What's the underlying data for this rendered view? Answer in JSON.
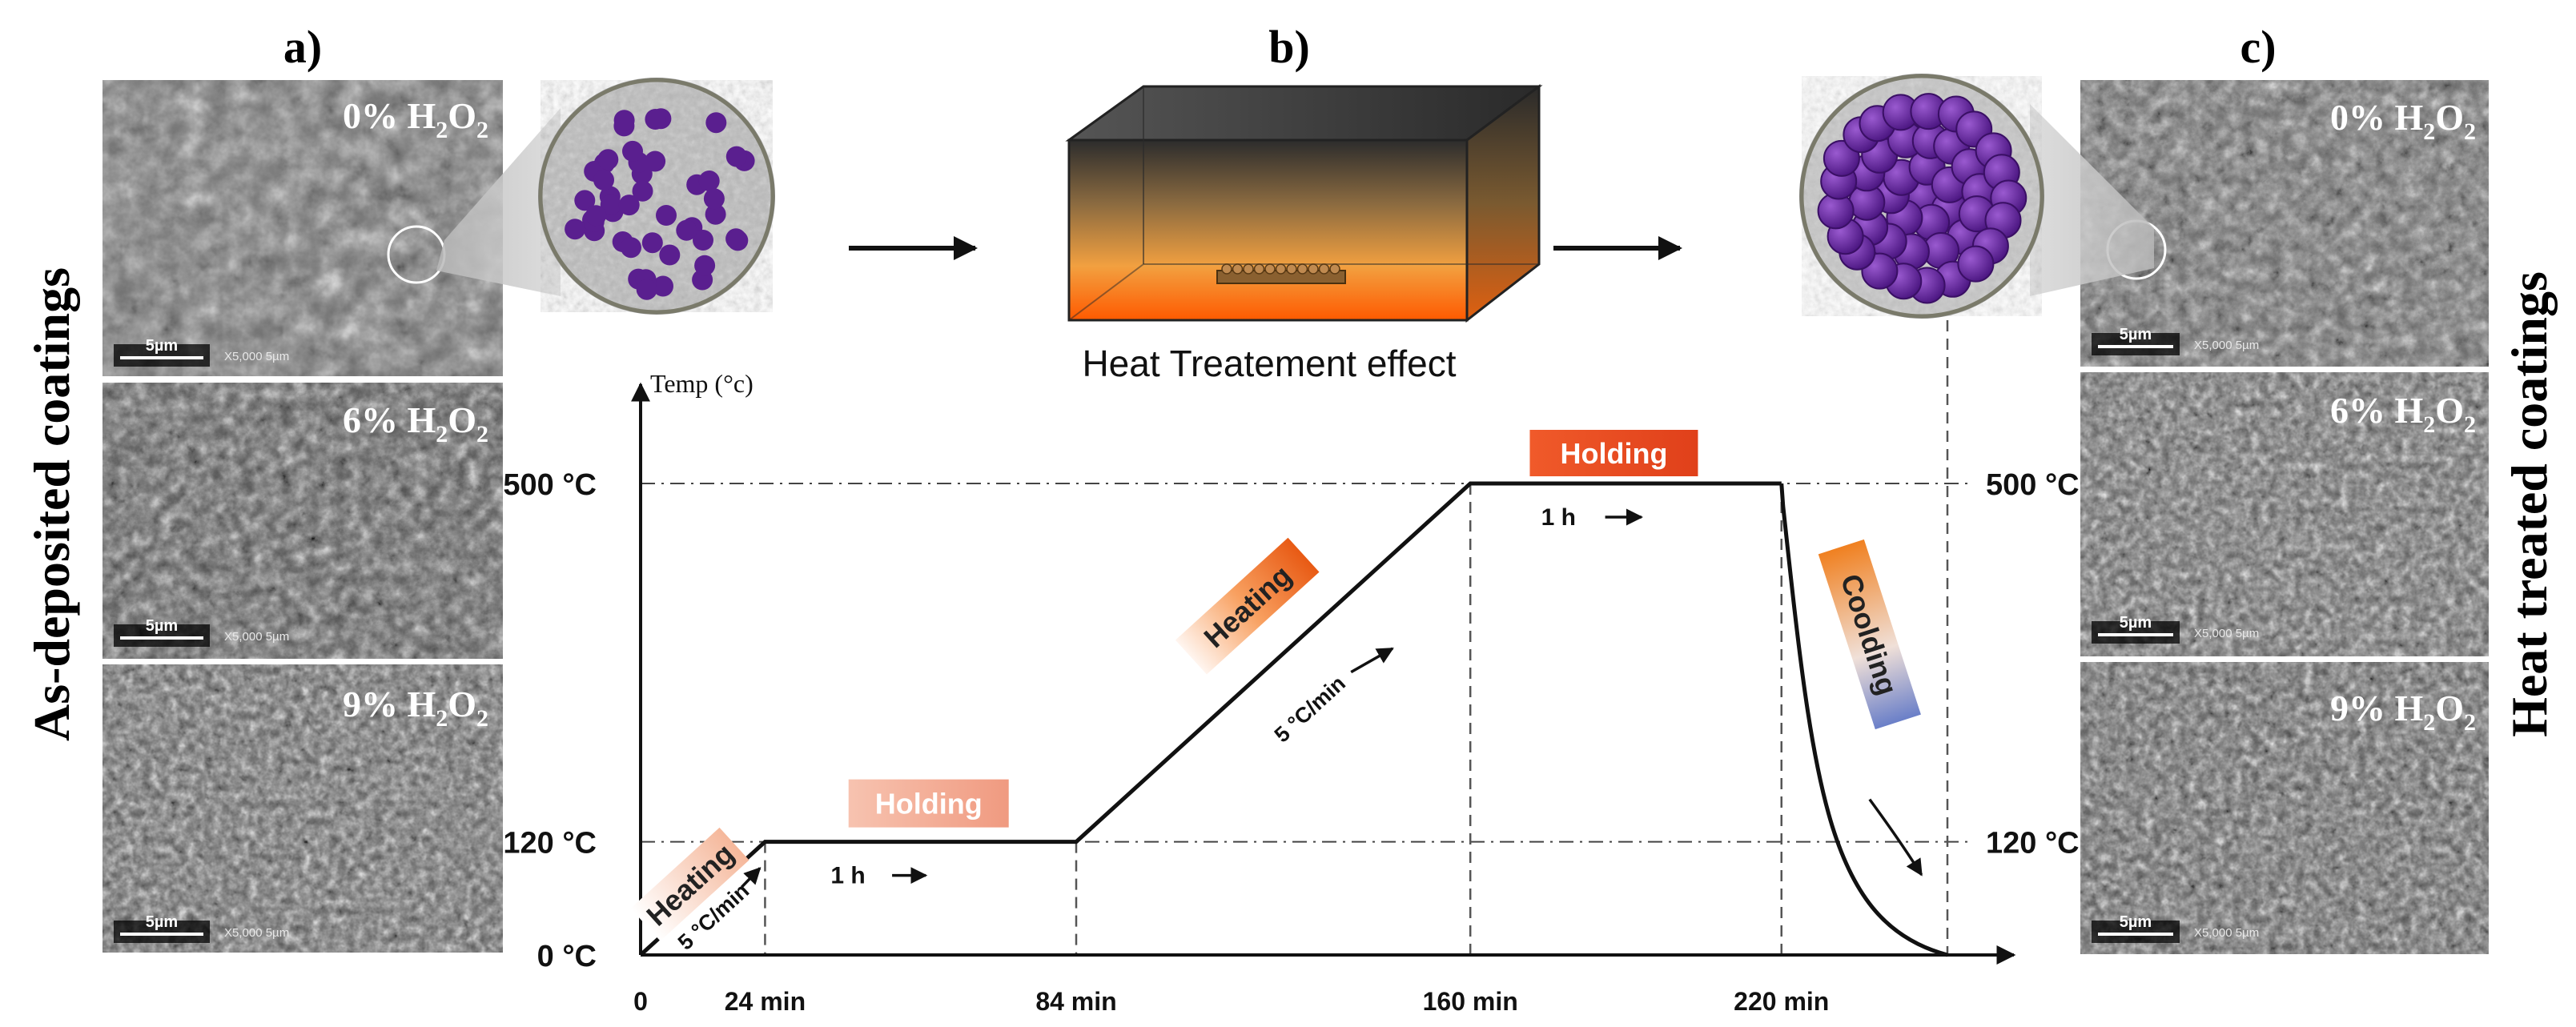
{
  "panels": {
    "a": {
      "letter": "a)",
      "side_label": "As-deposited coatings"
    },
    "b": {
      "letter": "b)",
      "caption": "Heat Treatement effect"
    },
    "c": {
      "letter": "c)",
      "side_label": "Heat treated coatings"
    }
  },
  "sem_images": {
    "as_deposited": [
      {
        "pct": "0% H",
        "sub": "2",
        "mid": "O",
        "sub2": "2",
        "scale": "5µm",
        "mag": "X5,000   5µm"
      },
      {
        "pct": "6% H",
        "sub": "2",
        "mid": "O",
        "sub2": "2",
        "scale": "5µm",
        "mag": "X5,000   5µm"
      },
      {
        "pct": "9% H",
        "sub": "2",
        "mid": "O",
        "sub2": "2",
        "scale": "5µm",
        "mag": "X5,000   5µm"
      }
    ],
    "heat_treated": [
      {
        "pct": "0% H",
        "sub": "2",
        "mid": "O",
        "sub2": "2",
        "scale": "5µm",
        "mag": "X5,000   5µm"
      },
      {
        "pct": "6% H",
        "sub": "2",
        "mid": "O",
        "sub2": "2",
        "scale": "5µm",
        "mag": "X5,000   5µm"
      },
      {
        "pct": "9% H",
        "sub": "2",
        "mid": "O",
        "sub2": "2",
        "scale": "5µm",
        "mag": "X5,000   5µm"
      }
    ]
  },
  "chart_data": {
    "type": "line",
    "ylabel": "Temp (°c)",
    "y_ticks": [
      "0 °C",
      "120 °C",
      "500 °C"
    ],
    "y_ticks_right": [
      "120 °C",
      "500 °C"
    ],
    "x_ticks": [
      "0",
      "24 min",
      "84 min",
      "160 min",
      "220 min"
    ],
    "x": [
      0,
      24,
      84,
      160,
      220,
      252
    ],
    "y": [
      0,
      120,
      120,
      500,
      500,
      0
    ],
    "stages": [
      {
        "name": "Heating",
        "rate": "5 °C/min"
      },
      {
        "name": "Holding",
        "duration": "1 h"
      },
      {
        "name": "Heating",
        "rate": "5 °C/min"
      },
      {
        "name": "Holding",
        "duration": "1 h"
      },
      {
        "name": "Coolding"
      }
    ],
    "colors": {
      "heating": "#e8692a",
      "holding_1": "#f2a58e",
      "holding_2": "#e8492a",
      "cooling_top": "#f07a20",
      "cooling_bottom": "#6a7fc8",
      "particles": "#5a1f8f"
    }
  }
}
